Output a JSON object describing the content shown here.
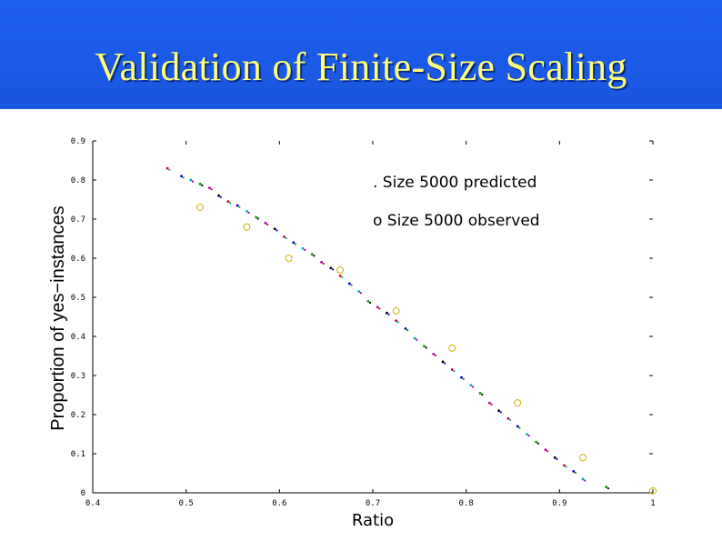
{
  "slide": {
    "title": "Validation of Finite-Size Scaling"
  },
  "chart_data": {
    "type": "scatter",
    "title": "",
    "xlabel": "Ratio",
    "ylabel": "Proportion of yes−instances",
    "xlim": [
      0.4,
      1.0
    ],
    "ylim": [
      0,
      0.9
    ],
    "xticks": [
      "0.4",
      "0.5",
      "0.6",
      "0.7",
      "0.8",
      "0.9",
      "1"
    ],
    "yticks": [
      "0",
      "0.1",
      "0.2",
      "0.3",
      "0.4",
      "0.5",
      "0.6",
      "0.7",
      "0.8",
      "0.9"
    ],
    "xtick_values": [
      0.4,
      0.5,
      0.6,
      0.7,
      0.8,
      0.9,
      1.0
    ],
    "ytick_values": [
      0,
      0.1,
      0.2,
      0.3,
      0.4,
      0.5,
      0.6,
      0.7,
      0.8,
      0.9
    ],
    "grid": false,
    "legend_position": "top-right",
    "series": [
      {
        "name": "Size 5000 predicted",
        "legend_label": ". Size 5000 predicted",
        "marker": "dot",
        "colors": [
          "#cc0000",
          "#0000cc",
          "#00aaaa",
          "#009900",
          "#aa00aa",
          "#000000"
        ],
        "x": [
          0.48,
          0.495,
          0.505,
          0.515,
          0.525,
          0.535,
          0.545,
          0.555,
          0.565,
          0.575,
          0.585,
          0.595,
          0.605,
          0.615,
          0.625,
          0.635,
          0.645,
          0.655,
          0.665,
          0.675,
          0.685,
          0.695,
          0.705,
          0.715,
          0.725,
          0.735,
          0.745,
          0.755,
          0.765,
          0.775,
          0.785,
          0.795,
          0.805,
          0.815,
          0.825,
          0.835,
          0.845,
          0.855,
          0.865,
          0.875,
          0.885,
          0.895,
          0.905,
          0.915,
          0.925,
          0.95
        ],
        "y": [
          0.83,
          0.81,
          0.8,
          0.79,
          0.78,
          0.76,
          0.745,
          0.735,
          0.72,
          0.705,
          0.69,
          0.675,
          0.655,
          0.64,
          0.625,
          0.61,
          0.59,
          0.575,
          0.555,
          0.535,
          0.515,
          0.49,
          0.475,
          0.46,
          0.44,
          0.42,
          0.395,
          0.375,
          0.355,
          0.335,
          0.315,
          0.295,
          0.275,
          0.255,
          0.23,
          0.21,
          0.19,
          0.17,
          0.15,
          0.13,
          0.11,
          0.09,
          0.07,
          0.055,
          0.035,
          0.015
        ]
      },
      {
        "name": "Size 5000 observed",
        "legend_label": "o Size 5000 observed",
        "marker": "circle",
        "color": "#c8b400",
        "x": [
          0.515,
          0.565,
          0.61,
          0.665,
          0.725,
          0.785,
          0.855,
          0.925,
          1.0
        ],
        "y": [
          0.73,
          0.68,
          0.6,
          0.57,
          0.465,
          0.37,
          0.23,
          0.09,
          0.005
        ]
      }
    ]
  }
}
